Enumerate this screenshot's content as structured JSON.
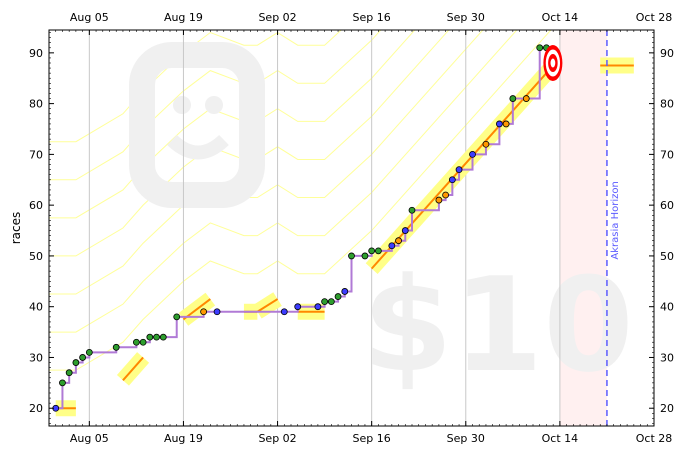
{
  "chart_data": {
    "type": "line",
    "title": "",
    "ylabel": "races",
    "xlabel": "",
    "xlim": [
      "2024-07-30",
      "2024-10-28"
    ],
    "ylim": [
      16.5,
      94.5
    ],
    "grid": "vertical",
    "x_ticks": [
      "Aug 05",
      "Aug 19",
      "Sep 02",
      "Sep 16",
      "Sep 30",
      "Oct 14",
      "Oct 28"
    ],
    "y_ticks": [
      20,
      30,
      40,
      50,
      60,
      70,
      80,
      90
    ],
    "watermark_top_icon": "smiley-face",
    "watermark_bottom_text": "$10",
    "akrasia_horizon": {
      "date": "2024-10-21",
      "label": "Akrasia Horizon",
      "color": "#5b5bff"
    },
    "goal_date": "2024-10-14",
    "goal_value": 88,
    "target_icon": "bullseye",
    "colors": {
      "road": "#ffff88",
      "road_center": "#ff8800",
      "steps": "#b07ad6",
      "point_green": "#2e9e2e",
      "point_blue": "#3c3cff",
      "point_orange": "#ff9900",
      "grid": "#c8c8c8",
      "guide": "#ffff99",
      "future_shade": "#fff0f0"
    },
    "series": [
      {
        "values": [
          {
            "x": "2024-07-31",
            "y": 20,
            "c": "b"
          },
          {
            "x": "2024-08-01",
            "y": 25,
            "c": "g"
          },
          {
            "x": "2024-08-02",
            "y": 27,
            "c": "g"
          },
          {
            "x": "2024-08-03",
            "y": 29,
            "c": "g"
          },
          {
            "x": "2024-08-04",
            "y": 30,
            "c": "g"
          },
          {
            "x": "2024-08-05",
            "y": 31,
            "c": "g"
          },
          {
            "x": "2024-08-09",
            "y": 32,
            "c": "g"
          },
          {
            "x": "2024-08-12",
            "y": 33,
            "c": "g"
          },
          {
            "x": "2024-08-13",
            "y": 33,
            "c": "g"
          },
          {
            "x": "2024-08-14",
            "y": 34,
            "c": "g"
          },
          {
            "x": "2024-08-15",
            "y": 34,
            "c": "g"
          },
          {
            "x": "2024-08-16",
            "y": 34,
            "c": "g"
          },
          {
            "x": "2024-08-18",
            "y": 38,
            "c": "g"
          },
          {
            "x": "2024-08-22",
            "y": 39,
            "c": "o"
          },
          {
            "x": "2024-08-24",
            "y": 39,
            "c": "b"
          },
          {
            "x": "2024-09-03",
            "y": 39,
            "c": "b"
          },
          {
            "x": "2024-09-05",
            "y": 40,
            "c": "b"
          },
          {
            "x": "2024-09-08",
            "y": 40,
            "c": "b"
          },
          {
            "x": "2024-09-09",
            "y": 41,
            "c": "g"
          },
          {
            "x": "2024-09-10",
            "y": 41,
            "c": "g"
          },
          {
            "x": "2024-09-11",
            "y": 42,
            "c": "g"
          },
          {
            "x": "2024-09-12",
            "y": 43,
            "c": "b"
          },
          {
            "x": "2024-09-13",
            "y": 50,
            "c": "g"
          },
          {
            "x": "2024-09-15",
            "y": 50,
            "c": "g"
          },
          {
            "x": "2024-09-16",
            "y": 51,
            "c": "g"
          },
          {
            "x": "2024-09-17",
            "y": 51,
            "c": "g"
          },
          {
            "x": "2024-09-19",
            "y": 52,
            "c": "b"
          },
          {
            "x": "2024-09-20",
            "y": 53,
            "c": "o"
          },
          {
            "x": "2024-09-21",
            "y": 55,
            "c": "b"
          },
          {
            "x": "2024-09-22",
            "y": 59,
            "c": "g"
          },
          {
            "x": "2024-09-26",
            "y": 61,
            "c": "o"
          },
          {
            "x": "2024-09-27",
            "y": 62,
            "c": "o"
          },
          {
            "x": "2024-09-28",
            "y": 65,
            "c": "b"
          },
          {
            "x": "2024-09-29",
            "y": 67,
            "c": "b"
          },
          {
            "x": "2024-10-01",
            "y": 70,
            "c": "b"
          },
          {
            "x": "2024-10-03",
            "y": 72,
            "c": "o"
          },
          {
            "x": "2024-10-05",
            "y": 76,
            "c": "b"
          },
          {
            "x": "2024-10-06",
            "y": 76,
            "c": "o"
          },
          {
            "x": "2024-10-07",
            "y": 81,
            "c": "g"
          },
          {
            "x": "2024-10-09",
            "y": 81,
            "c": "o"
          },
          {
            "x": "2024-10-11",
            "y": 91,
            "c": "g"
          },
          {
            "x": "2024-10-12",
            "y": 91,
            "c": "g"
          }
        ]
      }
    ],
    "road_segments": [
      {
        "x1": "2024-07-31",
        "y1": 20,
        "x2": "2024-08-03",
        "y2": 20
      },
      {
        "x1": "2024-08-10",
        "y1": 25.5,
        "x2": "2024-08-13",
        "y2": 30
      },
      {
        "x1": "2024-08-19",
        "y1": 37.5,
        "x2": "2024-08-23",
        "y2": 41.5
      },
      {
        "x1": "2024-08-28",
        "y1": 39,
        "x2": "2024-08-30",
        "y2": 39
      },
      {
        "x1": "2024-08-30",
        "y1": 39,
        "x2": "2024-09-02",
        "y2": 41.5
      },
      {
        "x1": "2024-09-05",
        "y1": 39,
        "x2": "2024-09-09",
        "y2": 39
      },
      {
        "x1": "2024-09-16",
        "y1": 47.5,
        "x2": "2024-10-13",
        "y2": 87.5
      },
      {
        "x1": "2024-10-20",
        "y1": 87.5,
        "x2": "2024-10-25",
        "y2": 87.5
      }
    ]
  }
}
